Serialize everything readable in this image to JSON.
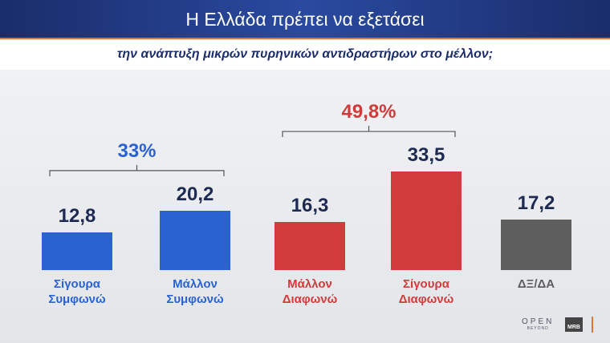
{
  "chart_data": {
    "type": "bar",
    "title": "Η Ελλάδα πρέπει να εξετάσει",
    "subtitle": "την ανάπτυξη μικρών πυρηνικών αντιδραστήρων στο μέλλον;",
    "categories": [
      "Σίγουρα\nΣυμφωνώ",
      "Μάλλον\nΣυμφωνώ",
      "Μάλλον\nΔιαφωνώ",
      "Σίγουρα\nΔιαφωνώ",
      "ΔΞ/ΔΑ"
    ],
    "values": [
      12.8,
      20.2,
      16.3,
      33.5,
      17.2
    ],
    "value_labels": [
      "12,8",
      "20,2",
      "16,3",
      "33,5",
      "17,2"
    ],
    "colors": [
      "#2a62d2",
      "#2a62d2",
      "#d23b3b",
      "#d23b3b",
      "#5e5e5e"
    ],
    "groups": [
      {
        "value": 33,
        "label": "33%",
        "color": "#2a62d2"
      },
      {
        "value": 49.8,
        "label": "49,8%",
        "color": "#d23b3b"
      }
    ]
  },
  "logos": {
    "open": "OPEN",
    "open_sub": "BEYOND",
    "mrb": "MRB"
  }
}
